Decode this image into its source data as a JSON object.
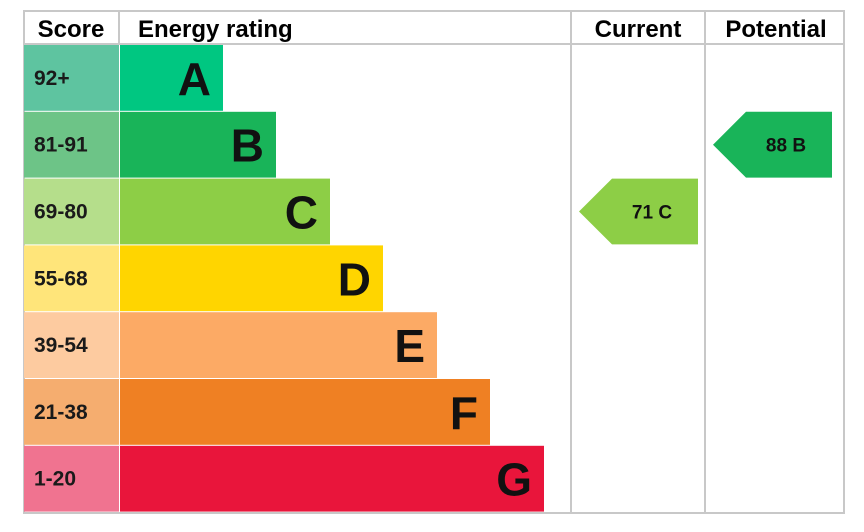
{
  "chart_data": {
    "type": "bar",
    "headers": {
      "score": "Score",
      "rating": "Energy rating",
      "current": "Current",
      "potential": "Potential"
    },
    "bands": [
      {
        "range": "92+",
        "letter": "A",
        "color": "#00c781",
        "score_bg": "#5ec4a0"
      },
      {
        "range": "81-91",
        "letter": "B",
        "color": "#19b459",
        "score_bg": "#6dc487"
      },
      {
        "range": "69-80",
        "letter": "C",
        "color": "#8dce46",
        "score_bg": "#b5de8b"
      },
      {
        "range": "55-68",
        "letter": "D",
        "color": "#ffd500",
        "score_bg": "#ffe57a"
      },
      {
        "range": "39-54",
        "letter": "E",
        "color": "#fcaa65",
        "score_bg": "#fdcba0"
      },
      {
        "range": "21-38",
        "letter": "F",
        "color": "#ef8023",
        "score_bg": "#f5ad6f"
      },
      {
        "range": "1-20",
        "letter": "G",
        "color": "#e9153b",
        "score_bg": "#f07390"
      }
    ],
    "current": {
      "value": 71,
      "letter": "C",
      "label": "71  C",
      "color": "#8dce46"
    },
    "potential": {
      "value": 88,
      "letter": "B",
      "label": "88  B",
      "color": "#19b459"
    }
  }
}
